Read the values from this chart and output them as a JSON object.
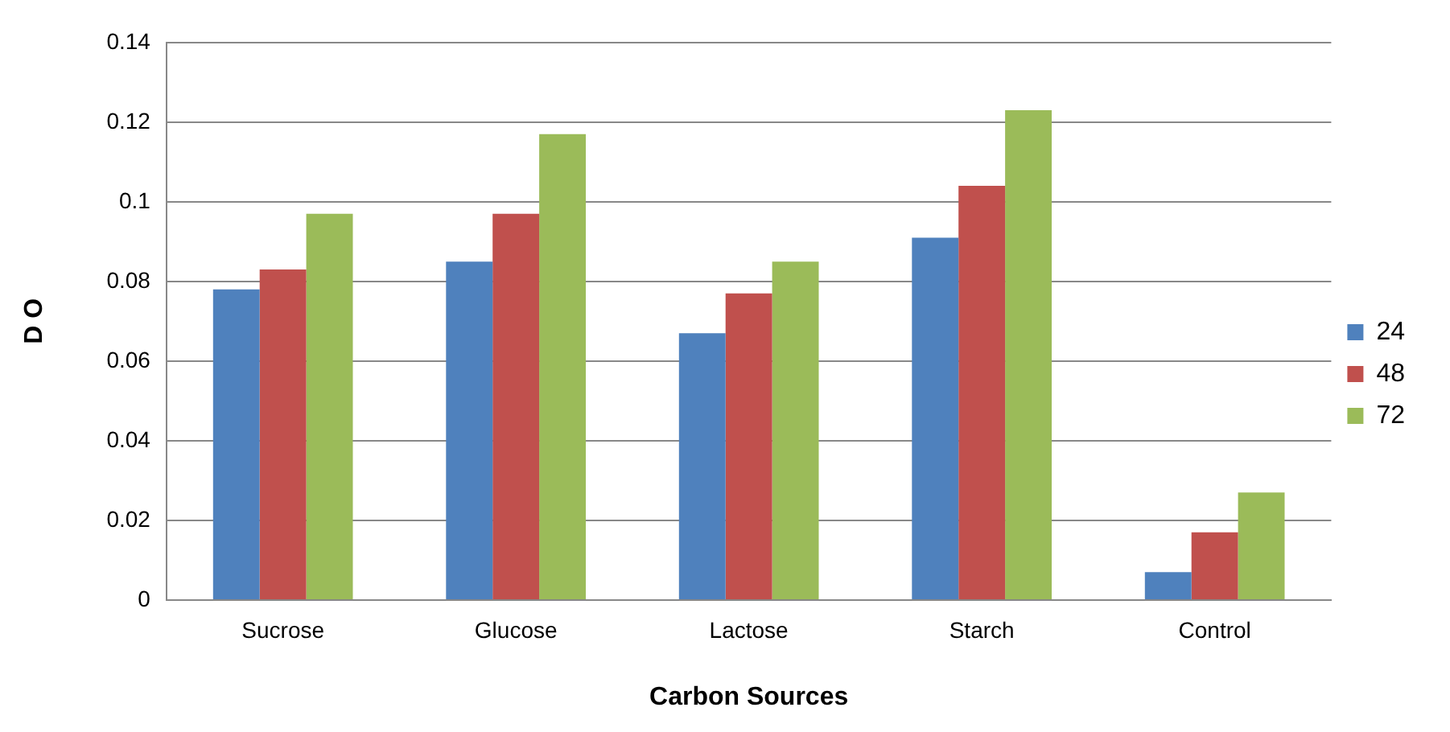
{
  "chart_data": {
    "type": "bar",
    "xlabel": "Carbon Sources",
    "ylabel": "D O",
    "categories": [
      "Sucrose",
      "Glucose",
      "Lactose",
      "Starch",
      "Control"
    ],
    "series": [
      {
        "name": "24",
        "color": "#4f81bd",
        "values": [
          0.078,
          0.085,
          0.067,
          0.091,
          0.007
        ]
      },
      {
        "name": "48",
        "color": "#c0504d",
        "values": [
          0.083,
          0.097,
          0.077,
          0.104,
          0.017
        ]
      },
      {
        "name": "72",
        "color": "#9bbb59",
        "values": [
          0.097,
          0.117,
          0.085,
          0.123,
          0.027
        ]
      }
    ],
    "ylim": [
      0,
      0.14
    ],
    "yticks": [
      0,
      0.02,
      0.04,
      0.06,
      0.08,
      0.1,
      0.12,
      0.14
    ],
    "grid": "y",
    "legend": "right"
  }
}
